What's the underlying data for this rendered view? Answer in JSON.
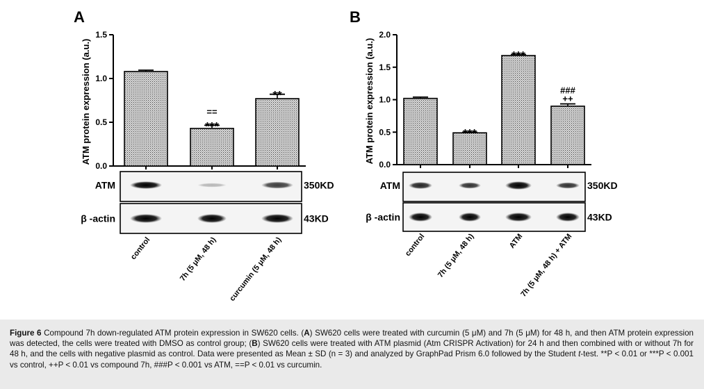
{
  "chart_data": [
    {
      "panel": "A",
      "type": "bar",
      "ylabel": "ATM protein expression (a.u.)",
      "ylim": [
        0,
        1.5
      ],
      "yticks": [
        "0.0",
        "0.5",
        "1.0",
        "1.5"
      ],
      "categories": [
        "control",
        "7h (5 μM, 48 h)",
        "curcumin (5 μM, 48 h)"
      ],
      "values": [
        1.08,
        0.43,
        0.77
      ],
      "errors": [
        0.015,
        0.035,
        0.05
      ],
      "annotations": [
        [],
        [
          "***",
          "=="
        ],
        [
          "**"
        ]
      ],
      "blot_rows": [
        {
          "label": "ATM",
          "size": "350KD"
        },
        {
          "label": "β -actin",
          "size": "43KD"
        }
      ]
    },
    {
      "panel": "B",
      "type": "bar",
      "ylabel": "ATM protein expression (a.u.)",
      "ylim": [
        0,
        2.0
      ],
      "yticks": [
        "0.0",
        "0.5",
        "1.0",
        "1.5",
        "2.0"
      ],
      "categories": [
        "control",
        "7h (5 μM, 48 h)",
        "ATM",
        "7h (5 μM, 48 h) + ATM"
      ],
      "values": [
        1.02,
        0.49,
        1.68,
        0.9
      ],
      "errors": [
        0.02,
        0.01,
        0.015,
        0.035
      ],
      "annotations": [
        [],
        [
          "***"
        ],
        [
          "***"
        ],
        [
          "++",
          "###"
        ]
      ],
      "blot_rows": [
        {
          "label": "ATM",
          "size": "350KD"
        },
        {
          "label": "β -actin",
          "size": "43KD"
        }
      ]
    }
  ],
  "caption": {
    "figure_label": "Figure 6",
    "title": "Compound 7h down-regulated ATM protein expression in SW620 cells. (",
    "a_label": "A",
    "a_text": ") SW620 cells were treated with curcumin (5 μM) and 7h (5 μM) for 48 h, and then ATM protein expression was detected, the cells were treated with DMSO as control group; (",
    "b_label": "B",
    "b_text": ") SW620 cells were treated with ATM plasmid (Atm CRISPR Activation) for 24 h and then combined with or without 7h for 48 h, and the cells with negative plasmid as control. Data were presented as Mean ± SD (n = 3) and analyzed by GraphPad Prism 6.0 followed by the Student ",
    "t_italic": "t",
    "rest": "-test. **P < 0.01 or ***P < 0.001 vs control, ++P < 0.01 vs compound 7h, ###P < 0.001 vs ATM, ==P < 0.01 vs curcumin."
  }
}
